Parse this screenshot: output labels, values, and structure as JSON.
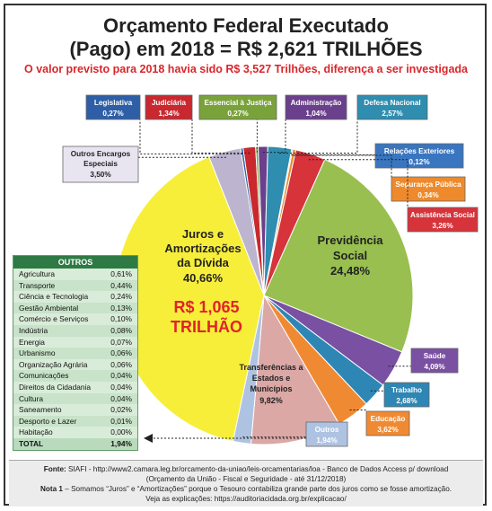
{
  "header": {
    "title_line1": "Orçamento Federal Executado",
    "title_line2": "(Pago) em 2018 = R$ 2,621 TRILHÕES",
    "subtitle": "O valor previsto para 2018 havia sido R$ 3,527 Trilhões, diferença a ser investigada"
  },
  "chart_data": {
    "type": "pie",
    "title": "Orçamento Federal Executado (Pago) em 2018 = R$ 2,621 TRILHÕES",
    "slices": [
      {
        "label": "Juros e Amortizações da Dívida",
        "value": 40.66,
        "value_text": "40,66%",
        "color": "#f7ee3a"
      },
      {
        "label": "Outros Encargos Especiais",
        "value": 3.5,
        "value_text": "3,50%",
        "color": "#bdb4cf"
      },
      {
        "label": "Legislativa",
        "value": 0.27,
        "value_text": "0,27%",
        "color": "#2e5fa6"
      },
      {
        "label": "Judiciária",
        "value": 1.34,
        "value_text": "1,34%",
        "color": "#c8282e"
      },
      {
        "label": "Essencial à Justiça",
        "value": 0.27,
        "value_text": "0,27%",
        "color": "#7aa23a"
      },
      {
        "label": "Administração",
        "value": 1.04,
        "value_text": "1,04%",
        "color": "#6a3f8c"
      },
      {
        "label": "Defesa Nacional",
        "value": 2.57,
        "value_text": "2,57%",
        "color": "#2f8db0"
      },
      {
        "label": "Relações Exteriores",
        "value": 0.12,
        "value_text": "0,12%",
        "color": "#3a76c0"
      },
      {
        "label": "Segurança Pública",
        "value": 0.34,
        "value_text": "0,34%",
        "color": "#ee8a2b"
      },
      {
        "label": "Assistência Social",
        "value": 3.26,
        "value_text": "3,26%",
        "color": "#d6333a"
      },
      {
        "label": "Previdência Social",
        "value": 24.48,
        "value_text": "24,48%",
        "color": "#98bf4f"
      },
      {
        "label": "Saúde",
        "value": 4.09,
        "value_text": "4,09%",
        "color": "#7a50a3"
      },
      {
        "label": "Trabalho",
        "value": 2.68,
        "value_text": "2,68%",
        "color": "#2e86b4"
      },
      {
        "label": "Educação",
        "value": 3.62,
        "value_text": "3,62%",
        "color": "#f08a32"
      },
      {
        "label": "Transferências a Estados e Municípios",
        "value": 9.82,
        "value_text": "9,82%",
        "color": "#dba8a6"
      },
      {
        "label": "Outros",
        "value": 1.94,
        "value_text": "1,94%",
        "color": "#aec3e2"
      }
    ],
    "annotation": {
      "line1": "R$ 1,065",
      "line2": "TRILHÃO",
      "color": "#e0232a"
    }
  },
  "outros": {
    "header": "OUTROS",
    "rows": [
      {
        "name": "Agricultura",
        "value": "0,61%"
      },
      {
        "name": "Transporte",
        "value": "0,44%"
      },
      {
        "name": "Ciência e Tecnologia",
        "value": "0,24%"
      },
      {
        "name": "Gestão Ambiental",
        "value": "0,13%"
      },
      {
        "name": "Comércio e Serviços",
        "value": "0,10%"
      },
      {
        "name": "Indústria",
        "value": "0,08%"
      },
      {
        "name": "Energia",
        "value": "0,07%"
      },
      {
        "name": "Urbanismo",
        "value": "0,06%"
      },
      {
        "name": "Organização Agrária",
        "value": "0,06%"
      },
      {
        "name": "Comunicações",
        "value": "0,04%"
      },
      {
        "name": "Direitos da Cidadania",
        "value": "0,04%"
      },
      {
        "name": "Cultura",
        "value": "0,04%"
      },
      {
        "name": "Saneamento",
        "value": "0,02%"
      },
      {
        "name": "Desporto e Lazer",
        "value": "0,01%"
      },
      {
        "name": "Habitação",
        "value": "0,00%"
      }
    ],
    "total_label": "TOTAL",
    "total_value": "1,94%"
  },
  "footer": {
    "fonte_label": "Fonte:",
    "fonte_text": "SIAFI - http://www2.camara.leg.br/orcamento-da-uniao/leis-orcamentarias/loa - Banco de Dados Access p/ download",
    "fonte_text2": "(Orçamento da União - Fiscal e Seguridade - até 31/12/2018)",
    "nota_label": "Nota 1",
    "nota_text": "– Somamos “Juros” e “Amortizações” porque o Tesouro contabiliza grande parte dos juros como se fosse amortização.",
    "explicacoes": "Veja as explicações: https://auditoriacidada.org.br/explicacao/"
  }
}
